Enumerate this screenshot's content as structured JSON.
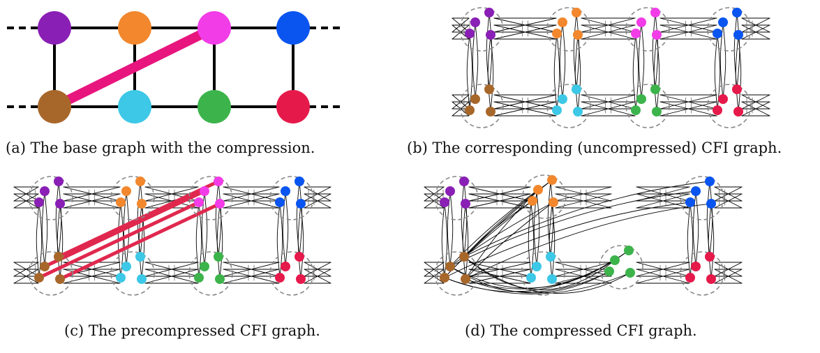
{
  "colors": {
    "purple": "#8a1fb5",
    "orange": "#f2872d",
    "magenta": "#f23ce8",
    "blue": "#0a55f0",
    "brown": "#a8672a",
    "cyan": "#3cc8e6",
    "green": "#3cb44b",
    "red": "#e6194b",
    "compression": "#e8157f",
    "compression_c": "#e0284e",
    "edge": "#000000",
    "cluster_outline": "#888888"
  },
  "panels": [
    {
      "id": "a",
      "caption": "(a) The base graph with the compression."
    },
    {
      "id": "b",
      "caption": "(b) The corresponding (uncompressed) CFI graph."
    },
    {
      "id": "c",
      "caption": "(c) The precompressed CFI graph."
    },
    {
      "id": "d",
      "caption": "(d) The compressed CFI graph."
    }
  ],
  "base_graph": {
    "top_row": [
      "purple",
      "orange",
      "magenta",
      "blue"
    ],
    "bottom_row": [
      "brown",
      "cyan",
      "green",
      "red"
    ],
    "compression_edge": [
      "brown",
      "magenta"
    ]
  }
}
